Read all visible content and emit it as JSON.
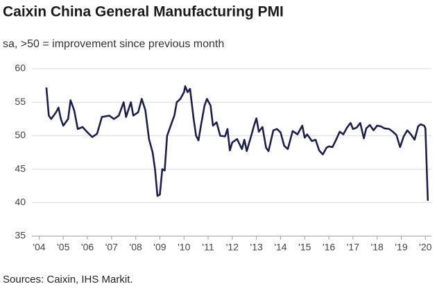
{
  "chart_data": {
    "type": "line",
    "title": "Caixin China General Manufacturing PMI",
    "subtitle": "sa, >50 = improvement since previous month",
    "source": "Sources: Caixin, IHS Markit.",
    "color": "#1c1f4a",
    "grid": true,
    "xlim": [
      2003.7,
      2020.25
    ],
    "ylim": [
      35,
      60
    ],
    "yticks": [
      35,
      40,
      45,
      50,
      55,
      60
    ],
    "xticks": [
      {
        "value": 2004,
        "label": "'04"
      },
      {
        "value": 2005,
        "label": "'05"
      },
      {
        "value": 2006,
        "label": "'06"
      },
      {
        "value": 2007,
        "label": "'07"
      },
      {
        "value": 2008,
        "label": "'08"
      },
      {
        "value": 2009,
        "label": "'09"
      },
      {
        "value": 2010,
        "label": "'10"
      },
      {
        "value": 2011,
        "label": "'11"
      },
      {
        "value": 2012,
        "label": "'12"
      },
      {
        "value": 2013,
        "label": "'13"
      },
      {
        "value": 2014,
        "label": "'14"
      },
      {
        "value": 2015,
        "label": "'15"
      },
      {
        "value": 2016,
        "label": "'16"
      },
      {
        "value": 2017,
        "label": "'17"
      },
      {
        "value": 2018,
        "label": "'18"
      },
      {
        "value": 2019,
        "label": "'19"
      },
      {
        "value": 2020,
        "label": "'20"
      }
    ],
    "x": [
      2004.3,
      2004.4,
      2004.5,
      2004.7,
      2004.8,
      2004.9,
      2005.0,
      2005.2,
      2005.3,
      2005.45,
      2005.6,
      2005.8,
      2006.0,
      2006.2,
      2006.4,
      2006.6,
      2006.9,
      2007.1,
      2007.3,
      2007.5,
      2007.6,
      2007.8,
      2007.9,
      2008.1,
      2008.25,
      2008.4,
      2008.55,
      2008.7,
      2008.8,
      2008.9,
      2009.0,
      2009.1,
      2009.2,
      2009.3,
      2009.5,
      2009.6,
      2009.7,
      2009.85,
      2010.0,
      2010.05,
      2010.15,
      2010.25,
      2010.4,
      2010.5,
      2010.6,
      2010.7,
      2010.85,
      2010.95,
      2011.1,
      2011.2,
      2011.35,
      2011.5,
      2011.7,
      2011.8,
      2011.9,
      2012.0,
      2012.2,
      2012.4,
      2012.5,
      2012.6,
      2012.8,
      2012.9,
      2013.0,
      2013.1,
      2013.25,
      2013.4,
      2013.5,
      2013.7,
      2013.85,
      2014.0,
      2014.15,
      2014.3,
      2014.5,
      2014.7,
      2014.9,
      2015.0,
      2015.1,
      2015.3,
      2015.45,
      2015.6,
      2015.75,
      2015.9,
      2016.0,
      2016.15,
      2016.3,
      2016.45,
      2016.6,
      2016.75,
      2016.9,
      2017.0,
      2017.15,
      2017.3,
      2017.45,
      2017.55,
      2017.7,
      2017.85,
      2018.0,
      2018.15,
      2018.3,
      2018.5,
      2018.65,
      2018.8,
      2018.95,
      2019.1,
      2019.25,
      2019.4,
      2019.55,
      2019.7,
      2019.8,
      2019.95,
      2020.0,
      2020.1
    ],
    "values": [
      57.2,
      53,
      52.5,
      53.5,
      54.2,
      52.5,
      51.5,
      52.5,
      55.3,
      53.8,
      51,
      51.3,
      50.5,
      49.8,
      50.3,
      52.8,
      53,
      52.5,
      53,
      55,
      52.8,
      55,
      53,
      53.5,
      55.5,
      53.8,
      49.5,
      47.5,
      45,
      41,
      41.2,
      45,
      44.8,
      50,
      52,
      53,
      55,
      55.5,
      56.5,
      57.4,
      56.5,
      57,
      52.5,
      50,
      49.3,
      51.5,
      54.5,
      55.5,
      54.5,
      51.5,
      52,
      50,
      49.9,
      51,
      47.8,
      49,
      49.5,
      48,
      49.4,
      47.7,
      50.2,
      51.5,
      52.6,
      50.6,
      51.3,
      48.2,
      47.7,
      50.8,
      51,
      50.5,
      48.5,
      48,
      50.7,
      50.2,
      51.5,
      49.7,
      50.2,
      49.2,
      49.4,
      47.8,
      47.2,
      48.2,
      48.4,
      48.3,
      49.4,
      50.6,
      50.2,
      51.2,
      51.9,
      51,
      51.2,
      51.9,
      49.6,
      51.1,
      51.6,
      50.8,
      51.5,
      51.4,
      51.1,
      51,
      50.6,
      50.1,
      48.3,
      49.9,
      50.8,
      50.2,
      49.4,
      51.4,
      51.7,
      51.5,
      51.1,
      40.3
    ]
  }
}
